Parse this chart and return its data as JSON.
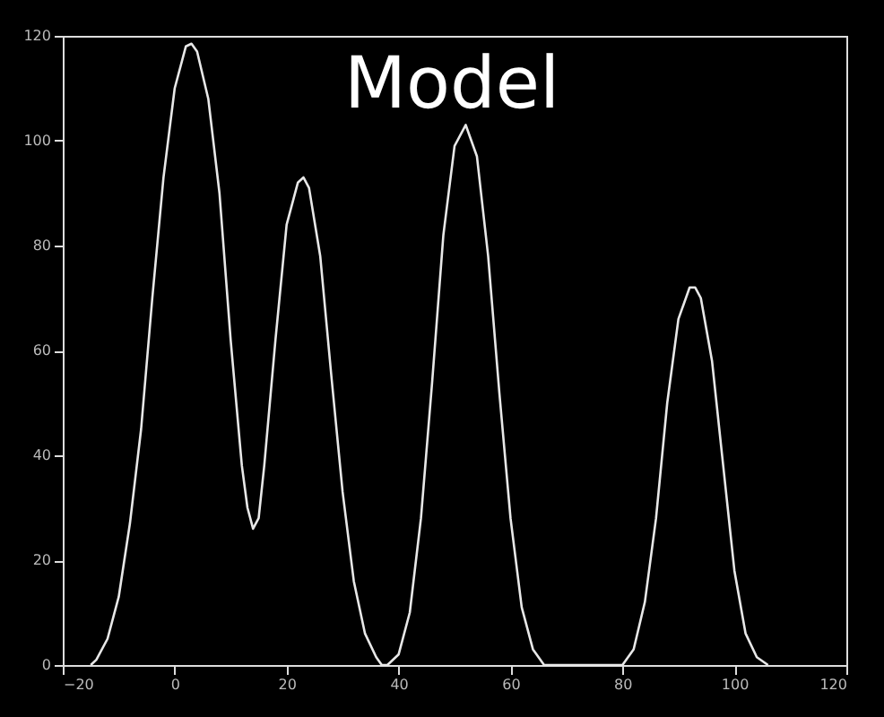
{
  "chart_data": {
    "type": "line",
    "title": "Model",
    "series": [
      {
        "color": "#e8e8e8",
        "x": [
          -15,
          -14,
          -12,
          -10,
          -8,
          -6,
          -4,
          -2,
          0,
          2,
          3,
          4,
          6,
          8,
          10,
          12,
          13,
          14,
          15,
          16,
          18,
          20,
          22,
          23,
          24,
          26,
          28,
          30,
          32,
          34,
          36,
          37,
          38,
          40,
          42,
          44,
          46,
          48,
          50,
          52,
          54,
          56,
          58,
          60,
          62,
          64,
          66,
          70,
          75,
          80,
          82,
          84,
          86,
          88,
          90,
          92,
          93,
          94,
          96,
          98,
          100,
          102,
          104,
          106
        ],
        "values": [
          0,
          1,
          5,
          13,
          27,
          45,
          70,
          93,
          110,
          118,
          118.5,
          117,
          108,
          90,
          62,
          38,
          30,
          26,
          28,
          38,
          62,
          84,
          92,
          93,
          91,
          78,
          55,
          33,
          16,
          6,
          1.5,
          0,
          0,
          2,
          10,
          28,
          54,
          82,
          99,
          103,
          97,
          78,
          52,
          28,
          11,
          3,
          0,
          0,
          0,
          0,
          3,
          12,
          28,
          50,
          66,
          72,
          72,
          70,
          58,
          38,
          18,
          6,
          1.5,
          0
        ]
      }
    ],
    "xlim": [
      -20,
      120
    ],
    "xticks": [
      -20,
      0,
      20,
      40,
      60,
      80,
      100,
      120
    ],
    "ylim": [
      0,
      120
    ],
    "yticks": [
      0,
      20,
      40,
      60,
      80,
      100,
      120
    ],
    "grid": false,
    "marker": "none",
    "line_style": "solid"
  }
}
